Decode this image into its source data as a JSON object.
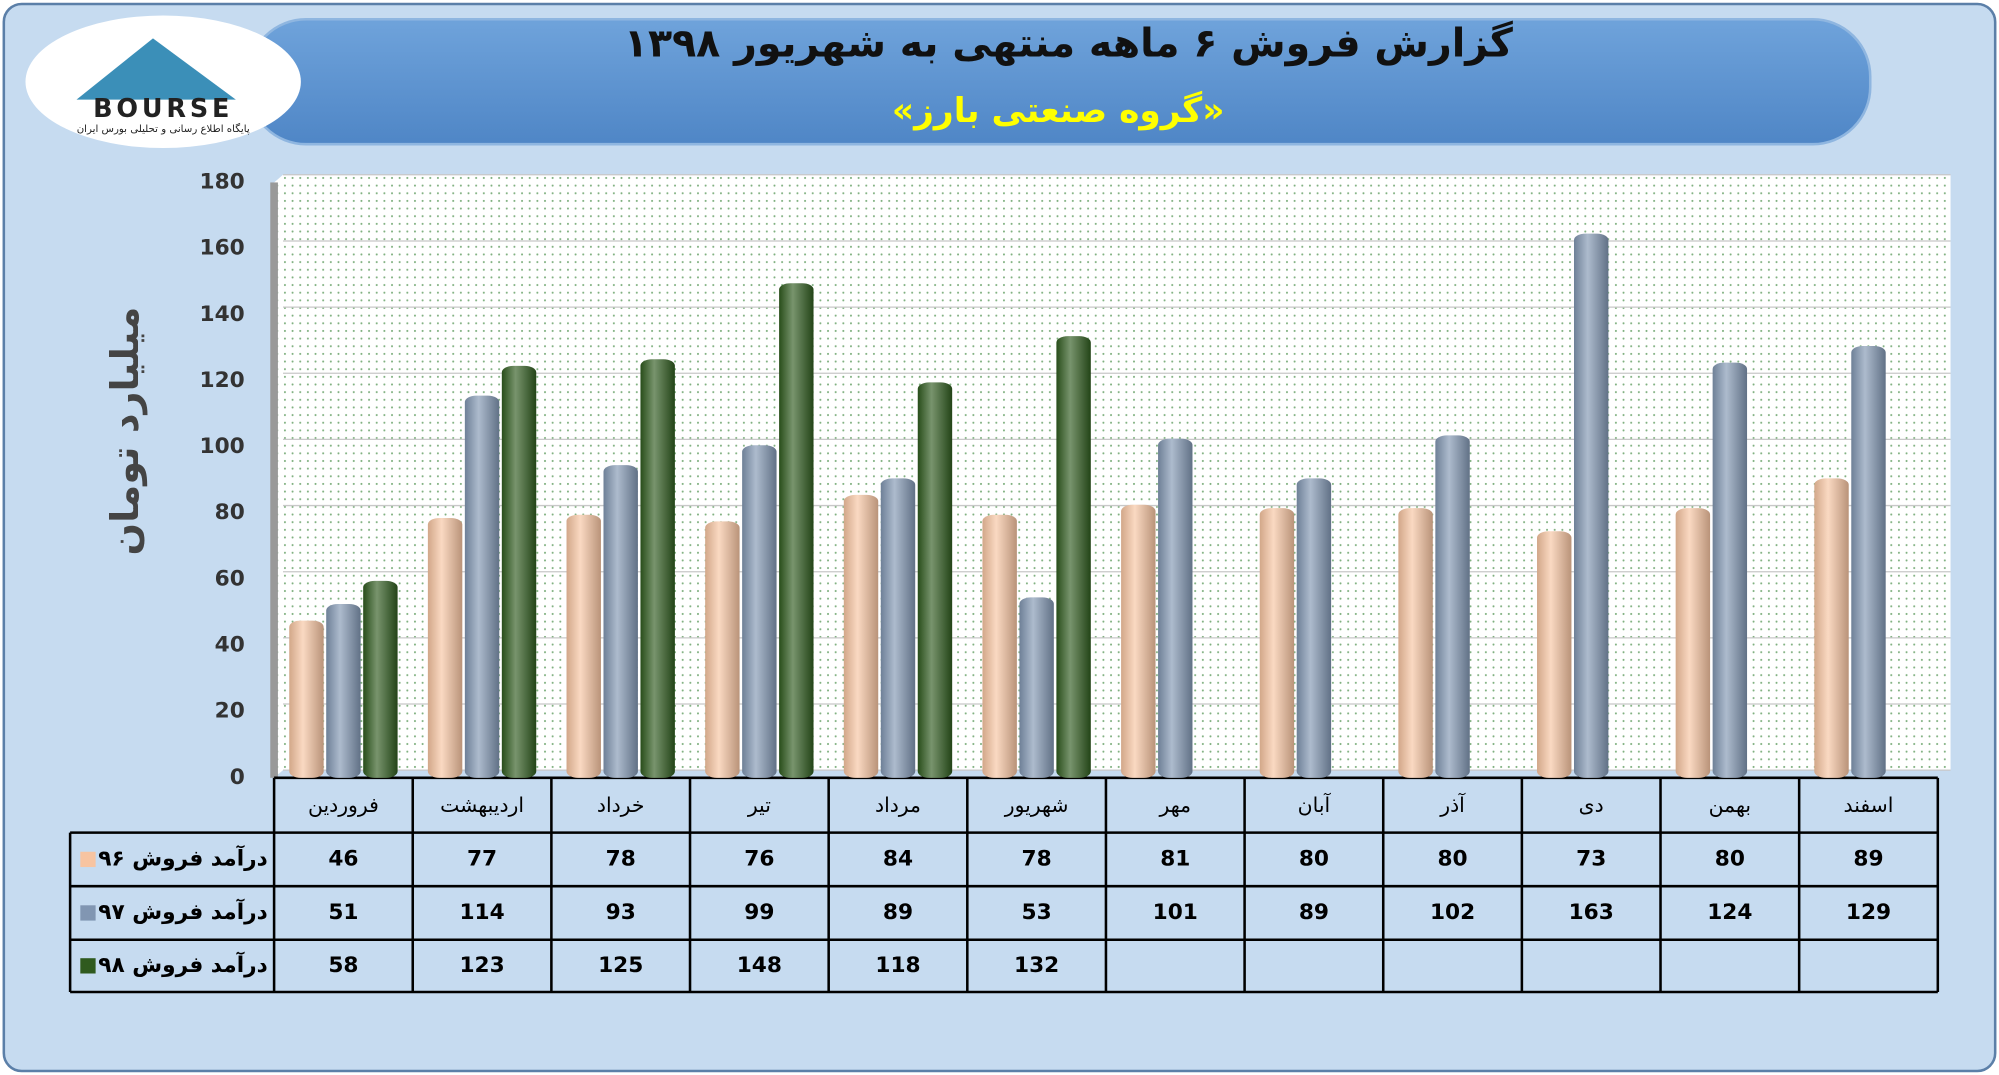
{
  "logo": {
    "name": "BOURSE",
    "tagline": "پایگاه اطلاع رسانی و تحلیلی بورس ایران"
  },
  "chart_data": {
    "type": "bar",
    "title": "گزارش فروش ۶ ماهه منتهی به شهریور ۱۳۹۸",
    "subtitle": "«گروه صنعتی بارز»",
    "y_label": "میلیارد تومان",
    "categories": [
      "فروردین",
      "اردیبهشت",
      "خرداد",
      "تیر",
      "مرداد",
      "شهریور",
      "مهر",
      "آبان",
      "آذر",
      "دی",
      "بهمن",
      "اسفند"
    ],
    "series": [
      {
        "name": "درآمد فروش ۹۶",
        "color": "#f7c4a1",
        "values": [
          46,
          77,
          78,
          76,
          84,
          78,
          81,
          80,
          80,
          73,
          80,
          89
        ]
      },
      {
        "name": "درآمد فروش ۹۷",
        "color": "#8196b2",
        "values": [
          51,
          114,
          93,
          99,
          89,
          53,
          101,
          89,
          102,
          163,
          124,
          129
        ]
      },
      {
        "name": "درآمد فروش ۹۸",
        "color": "#2f5a1e",
        "values": [
          58,
          123,
          125,
          148,
          118,
          132,
          null,
          null,
          null,
          null,
          null,
          null
        ]
      }
    ],
    "ylim": [
      0,
      180
    ],
    "yticks": [
      0,
      20,
      40,
      60,
      80,
      100,
      120,
      140,
      160,
      180
    ],
    "grid": true
  }
}
